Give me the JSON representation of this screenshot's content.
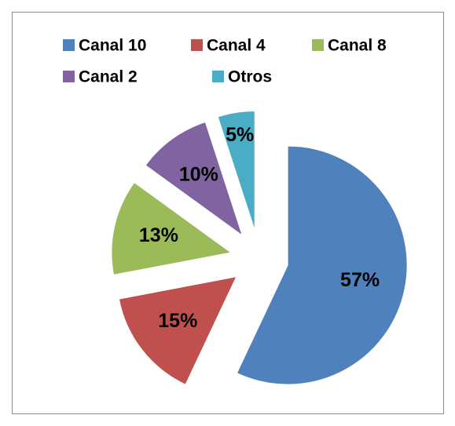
{
  "chart_data": {
    "type": "pie",
    "categories": [
      "Canal 10",
      "Canal 4",
      "Canal 8",
      "Canal 2",
      "Otros"
    ],
    "values": [
      57,
      15,
      13,
      10,
      5
    ],
    "value_labels": [
      "57%",
      "15%",
      "13%",
      "10%",
      "5%"
    ],
    "colors": [
      "#4f81bd",
      "#c0504d",
      "#9bbb59",
      "#8064a2",
      "#4bacc6"
    ],
    "legend": "top"
  }
}
